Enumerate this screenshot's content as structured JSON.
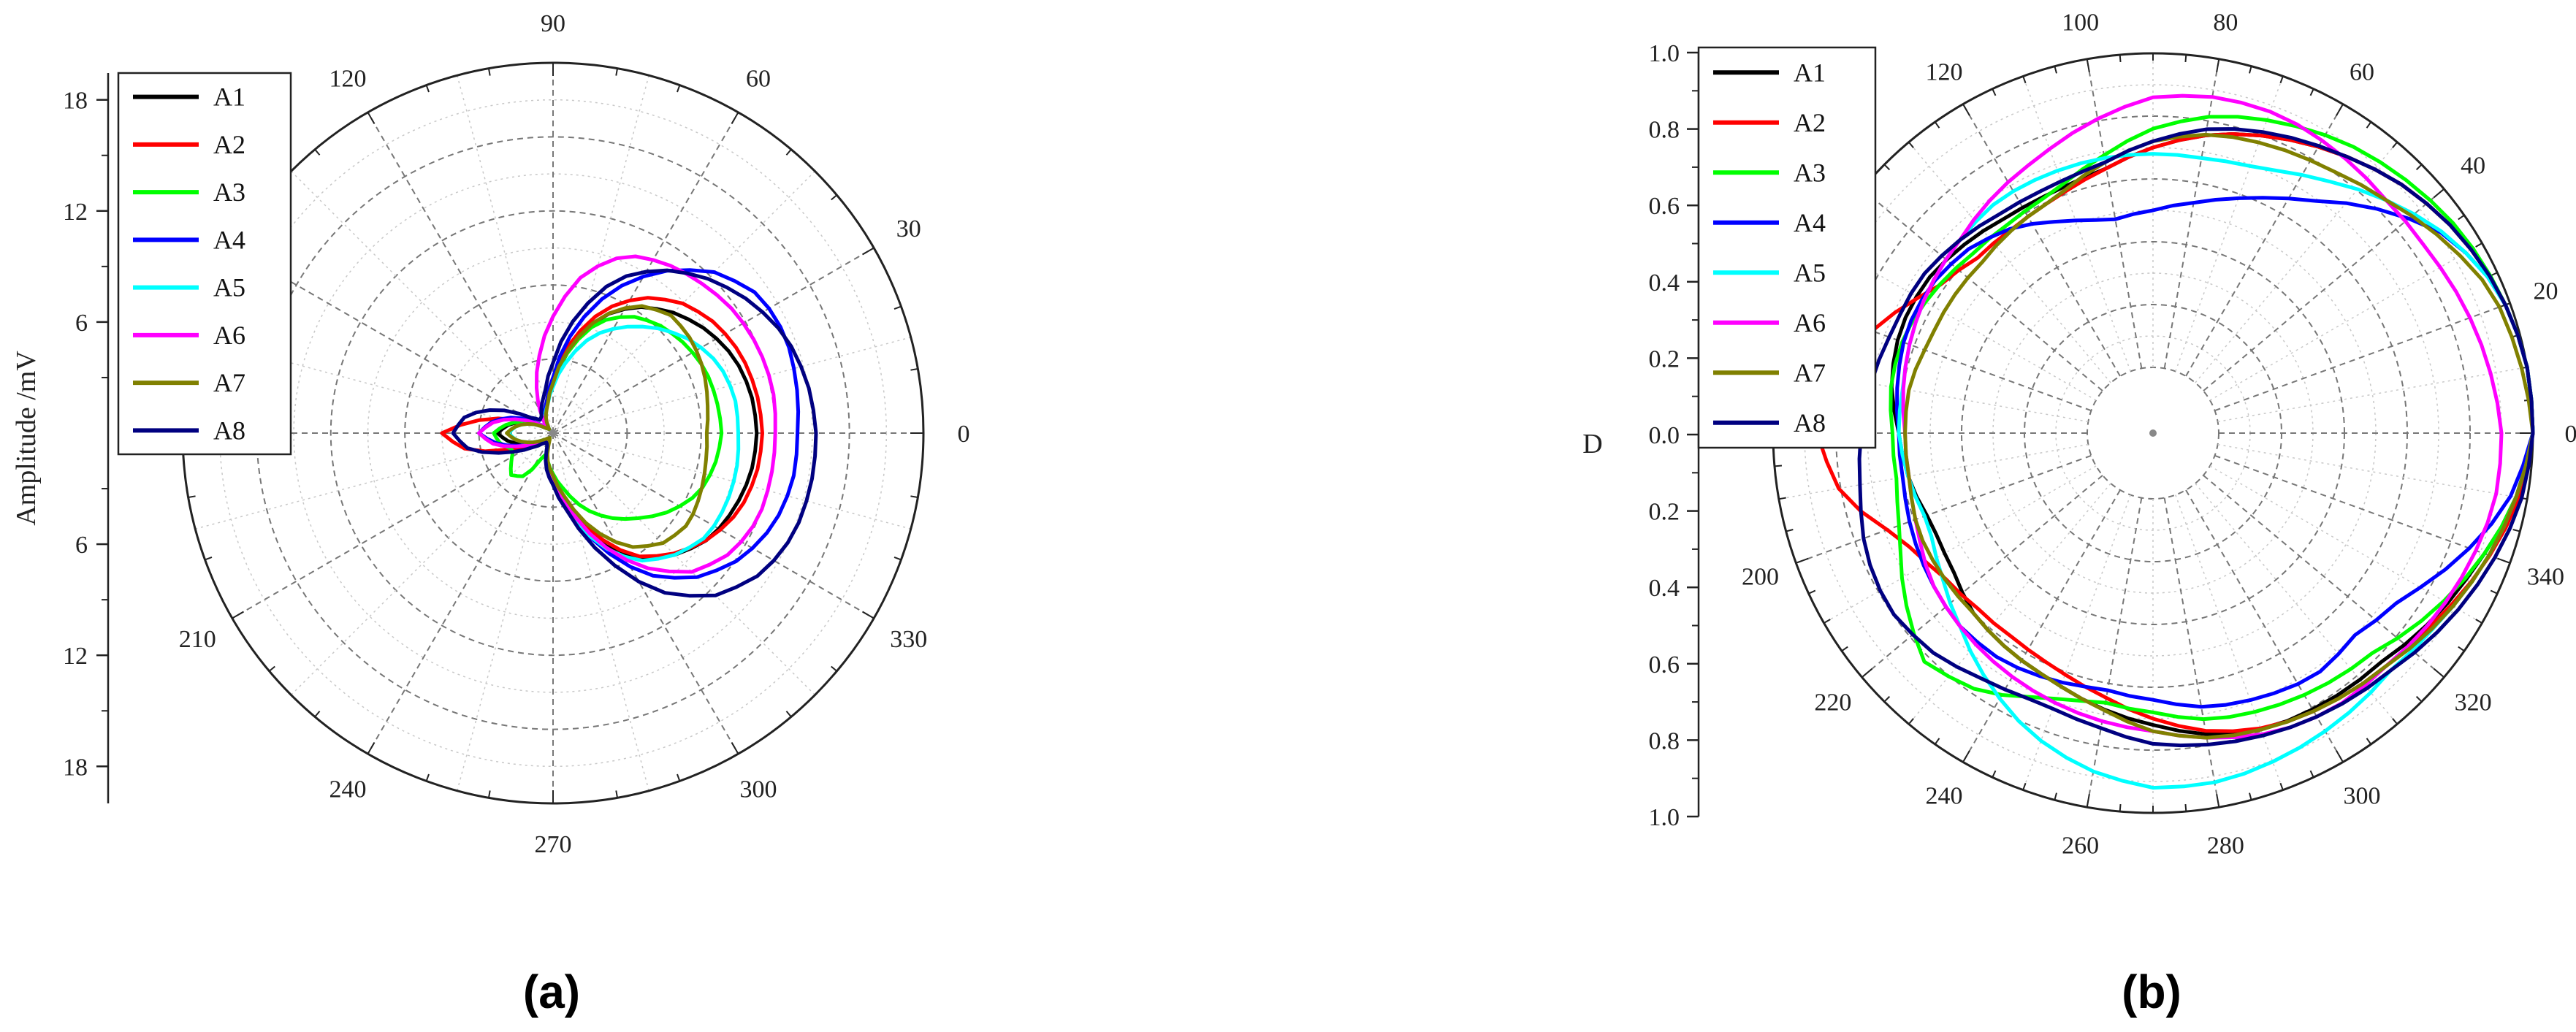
{
  "captions": [
    "(a)",
    "(b)"
  ],
  "chart_data": [
    {
      "type": "polar-line",
      "ylabel": "Amplitude /mV",
      "r_range": [
        0,
        20
      ],
      "r_ticks": [
        "6",
        "12",
        "18"
      ],
      "angle_ticks": [
        0,
        30,
        60,
        90,
        120,
        150,
        180,
        210,
        240,
        270,
        300,
        330
      ],
      "angle_tick_labels": [
        "0",
        "30",
        "60",
        "90",
        "120",
        "",
        "",
        "210",
        "240",
        "270",
        "300",
        "330"
      ],
      "legend": "top-left",
      "grid": true,
      "series": [
        {
          "name": "A1",
          "color": "#000000",
          "lobe": [
            11.0,
            10.9,
            10.6,
            10.0,
            9.2,
            8.2,
            6.8,
            4.6,
            2.6,
            1.6,
            1.2,
            0.5,
            0.3,
            0.5,
            1.6,
            2.4,
            3.0,
            2.4,
            1.5,
            0.8,
            0.4,
            0.3,
            0.6,
            1.7,
            2.4,
            3.8,
            6.3,
            8.2,
            9.3,
            10.2,
            10.6,
            10.9
          ],
          "spike": 0.5
        },
        {
          "name": "A2",
          "color": "#ff0000",
          "lobe": [
            11.3,
            11.2,
            11.0,
            10.6,
            9.9,
            8.8,
            7.2,
            5.0,
            3.0,
            1.7,
            1.1,
            0.6,
            0.4,
            0.6,
            1.6,
            3.8,
            6.0,
            4.7,
            2.0,
            0.8,
            0.5,
            0.4,
            0.6,
            1.6,
            2.4,
            3.7,
            5.9,
            8.0,
            9.2,
            10.2,
            10.9,
            11.2
          ],
          "spike": 0.5
        },
        {
          "name": "A3",
          "color": "#00ff00",
          "lobe": [
            9.1,
            9.0,
            8.9,
            8.6,
            8.2,
            7.6,
            6.5,
            4.6,
            2.6,
            1.5,
            1.1,
            0.5,
            0.3,
            0.6,
            1.6,
            2.5,
            3.2,
            2.9,
            2.3,
            2.7,
            3.2,
            2.8,
            1.2,
            1.5,
            2.2,
            3.1,
            4.4,
            5.5,
            6.5,
            7.6,
            8.5,
            8.9
          ],
          "spike": 0.5
        },
        {
          "name": "A4",
          "color": "#0000ff",
          "lobe": [
            13.2,
            13.4,
            13.6,
            13.4,
            12.3,
            10.5,
            8.3,
            5.6,
            3.0,
            1.7,
            1.2,
            0.7,
            0.4,
            0.8,
            2.2,
            3.3,
            4.0,
            3.0,
            1.7,
            0.9,
            0.5,
            0.4,
            0.7,
            1.8,
            2.6,
            4.1,
            6.6,
            9.2,
            11.0,
            12.2,
            12.9,
            13.2
          ],
          "spike": 0.5
        },
        {
          "name": "A5",
          "color": "#00ffff",
          "lobe": [
            10.0,
            10.0,
            9.7,
            9.0,
            8.0,
            6.9,
            5.7,
            4.0,
            2.5,
            1.5,
            1.1,
            0.5,
            0.3,
            0.5,
            1.3,
            2.0,
            2.4,
            2.0,
            1.3,
            0.7,
            0.4,
            0.3,
            0.6,
            1.7,
            2.6,
            4.1,
            6.5,
            8.3,
            9.3,
            10.0,
            10.1,
            10.1
          ],
          "spike": 0.5
        },
        {
          "name": "A6",
          "color": "#ff00ff",
          "lobe": [
            12.0,
            12.1,
            12.0,
            11.8,
            11.4,
            11.0,
            10.4,
            8.8,
            6.3,
            4.0,
            2.2,
            1.0,
            0.5,
            0.7,
            1.9,
            3.2,
            4.0,
            3.2,
            1.8,
            0.9,
            0.4,
            0.4,
            0.7,
            1.7,
            2.5,
            3.9,
            6.3,
            8.7,
            10.6,
            11.6,
            12.0,
            12.0
          ],
          "spike": 0.5
        },
        {
          "name": "A7",
          "color": "#808000",
          "lobe": [
            8.3,
            8.5,
            8.8,
            9.0,
            9.0,
            8.3,
            6.8,
            4.7,
            2.7,
            1.5,
            1.0,
            0.5,
            0.3,
            0.5,
            1.3,
            2.0,
            2.5,
            2.0,
            1.3,
            0.7,
            0.4,
            0.3,
            0.5,
            1.5,
            2.3,
            3.6,
            5.6,
            7.4,
            8.4,
            8.8,
            8.6,
            8.4
          ],
          "spike": 2.5
        },
        {
          "name": "A8",
          "color": "#000080",
          "lobe": [
            14.2,
            14.0,
            13.6,
            12.8,
            11.8,
            10.6,
            9.0,
            6.4,
            3.8,
            2.2,
            1.6,
            1.1,
            1.0,
            1.5,
            3.3,
            4.8,
            5.4,
            4.6,
            2.7,
            1.4,
            0.8,
            0.6,
            0.8,
            1.9,
            2.8,
            4.4,
            7.2,
            10.3,
            12.4,
            13.6,
            14.1,
            14.2
          ],
          "spike": 0.5
        }
      ]
    },
    {
      "type": "polar-line",
      "ylabel": "D",
      "r_range": [
        0,
        1.0
      ],
      "r_ticks": [
        "0.0",
        "0.2",
        "0.4",
        "0.6",
        "0.8",
        "1.0"
      ],
      "angle_ticks": [
        0,
        20,
        40,
        60,
        80,
        100,
        120,
        140,
        160,
        180,
        200,
        220,
        240,
        260,
        280,
        300,
        320,
        340
      ],
      "angle_tick_labels": [
        "0",
        "20",
        "40",
        "60",
        "80",
        "100",
        "120",
        "",
        "",
        "",
        "200",
        "220",
        "240",
        "260",
        "280",
        "300",
        "320",
        "340"
      ],
      "legend": "top-left",
      "grid": true,
      "series": [
        {
          "name": "A1",
          "color": "#000000",
          "lobe": [
            1.0,
            1.0,
            0.98,
            0.95,
            0.91,
            0.86,
            0.81,
            0.76,
            0.7,
            0.64,
            0.62,
            0.62,
            0.64,
            0.66,
            0.66,
            0.64,
            0.6,
            0.58,
            0.55,
            0.56,
            0.6,
            0.62,
            0.64,
            0.68,
            0.72,
            0.77,
            0.8,
            0.81,
            0.82,
            0.86,
            0.9,
            0.96
          ],
          "spike": 0.45
        },
        {
          "name": "A2",
          "color": "#ff0000",
          "lobe": [
            1.0,
            1.0,
            0.98,
            0.95,
            0.91,
            0.86,
            0.81,
            0.76,
            0.7,
            0.64,
            0.6,
            0.58,
            0.58,
            0.62,
            0.72,
            0.82,
            0.86,
            0.8,
            0.66,
            0.6,
            0.58,
            0.58,
            0.6,
            0.64,
            0.7,
            0.76,
            0.8,
            0.82,
            0.84,
            0.87,
            0.92,
            0.97
          ],
          "spike": 0.45
        },
        {
          "name": "A3",
          "color": "#00ff00",
          "lobe": [
            1.0,
            1.0,
            0.98,
            0.96,
            0.93,
            0.9,
            0.86,
            0.82,
            0.76,
            0.68,
            0.62,
            0.6,
            0.6,
            0.62,
            0.64,
            0.64,
            0.62,
            0.62,
            0.66,
            0.74,
            0.82,
            0.78,
            0.7,
            0.66,
            0.68,
            0.72,
            0.74,
            0.76,
            0.78,
            0.84,
            0.9,
            0.96
          ],
          "spike": 0.45
        },
        {
          "name": "A4",
          "color": "#0000ff",
          "lobe": [
            1.0,
            1.0,
            0.98,
            0.92,
            0.8,
            0.68,
            0.6,
            0.54,
            0.5,
            0.48,
            0.52,
            0.58,
            0.62,
            0.64,
            0.64,
            0.62,
            0.6,
            0.6,
            0.62,
            0.64,
            0.66,
            0.66,
            0.64,
            0.62,
            0.64,
            0.68,
            0.7,
            0.72,
            0.7,
            0.74,
            0.84,
            0.94
          ],
          "spike": 0.45
        },
        {
          "name": "A5",
          "color": "#00ffff",
          "lobe": [
            1.0,
            1.0,
            0.98,
            0.92,
            0.84,
            0.76,
            0.7,
            0.68,
            0.68,
            0.68,
            0.68,
            0.68,
            0.66,
            0.64,
            0.62,
            0.6,
            0.6,
            0.58,
            0.56,
            0.6,
            0.66,
            0.74,
            0.82,
            0.88,
            0.92,
            0.92,
            0.9,
            0.88,
            0.86,
            0.88,
            0.92,
            0.96
          ],
          "spike": 0.45
        },
        {
          "name": "A6",
          "color": "#ff00ff",
          "lobe": [
            0.9,
            0.88,
            0.86,
            0.84,
            0.84,
            0.86,
            0.88,
            0.88,
            0.86,
            0.8,
            0.74,
            0.7,
            0.66,
            0.64,
            0.62,
            0.6,
            0.58,
            0.58,
            0.6,
            0.64,
            0.66,
            0.68,
            0.7,
            0.72,
            0.74,
            0.78,
            0.82,
            0.84,
            0.84,
            0.86,
            0.88,
            0.9
          ],
          "spike": 0.45
        },
        {
          "name": "A7",
          "color": "#808000",
          "lobe": [
            1.0,
            0.98,
            0.96,
            0.9,
            0.84,
            0.8,
            0.78,
            0.76,
            0.72,
            0.66,
            0.6,
            0.58,
            0.56,
            0.56,
            0.56,
            0.58,
            0.58,
            0.58,
            0.6,
            0.6,
            0.6,
            0.62,
            0.64,
            0.68,
            0.74,
            0.78,
            0.8,
            0.82,
            0.84,
            0.88,
            0.92,
            0.96
          ],
          "spike": 0.45
        },
        {
          "name": "A8",
          "color": "#000080",
          "lobe": [
            1.0,
            1.0,
            0.98,
            0.95,
            0.91,
            0.86,
            0.82,
            0.78,
            0.72,
            0.66,
            0.64,
            0.64,
            0.66,
            0.68,
            0.68,
            0.7,
            0.72,
            0.74,
            0.78,
            0.8,
            0.78,
            0.74,
            0.72,
            0.74,
            0.78,
            0.8,
            0.82,
            0.84,
            0.86,
            0.9,
            0.94,
            0.98
          ],
          "spike": 0.45
        }
      ]
    }
  ]
}
